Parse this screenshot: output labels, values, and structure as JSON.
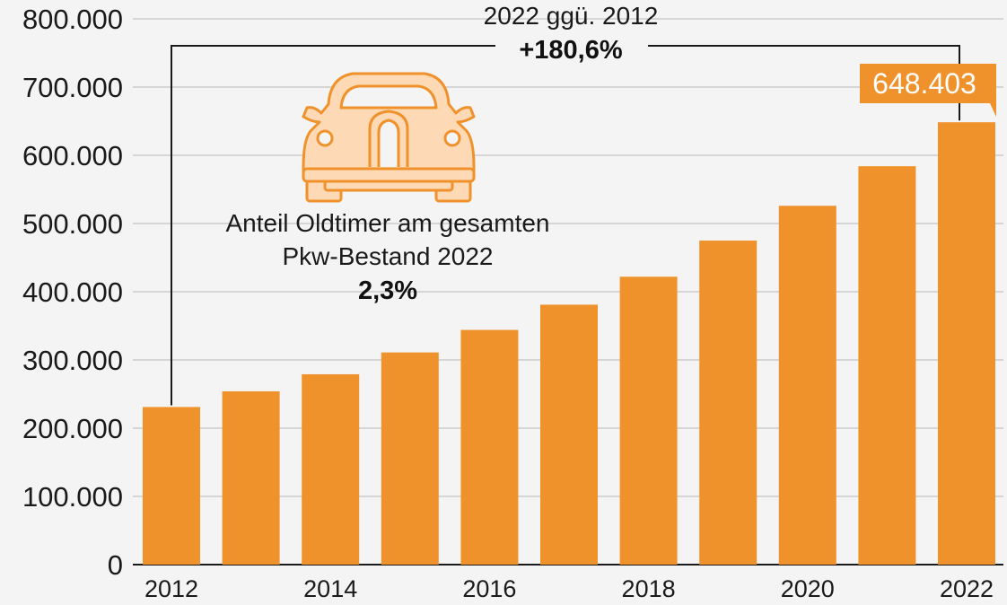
{
  "chart_data": {
    "type": "bar",
    "categories": [
      "2012",
      "2013",
      "2014",
      "2015",
      "2016",
      "2017",
      "2018",
      "2019",
      "2020",
      "2021",
      "2022"
    ],
    "x_tick_labels": [
      "2012",
      "2014",
      "2016",
      "2018",
      "2020",
      "2022"
    ],
    "values": [
      231000,
      254000,
      279000,
      311000,
      344000,
      381000,
      422000,
      475000,
      526000,
      584000,
      648403
    ],
    "ylim": [
      0,
      800000
    ],
    "y_ticks": [
      0,
      100000,
      200000,
      300000,
      400000,
      500000,
      600000,
      700000,
      800000
    ],
    "y_tick_labels": [
      "0",
      "100.000",
      "200.000",
      "300.000",
      "400.000",
      "500.000",
      "600.000",
      "700.000",
      "800.000"
    ],
    "title": "",
    "xlabel": "",
    "ylabel": "",
    "grid": true,
    "bar_color": "#f0922b",
    "annotations": {
      "comparison": {
        "label": "2022 ggü. 2012",
        "value": "+180,6%",
        "from": "2012",
        "to": "2022"
      },
      "last_value_label": "648.403",
      "share": {
        "line1": "Anteil Oldtimer am gesamten",
        "line2": "Pkw-Bestand 2022",
        "value": "2,3%",
        "icon": "oldtimer-car-icon"
      }
    }
  }
}
